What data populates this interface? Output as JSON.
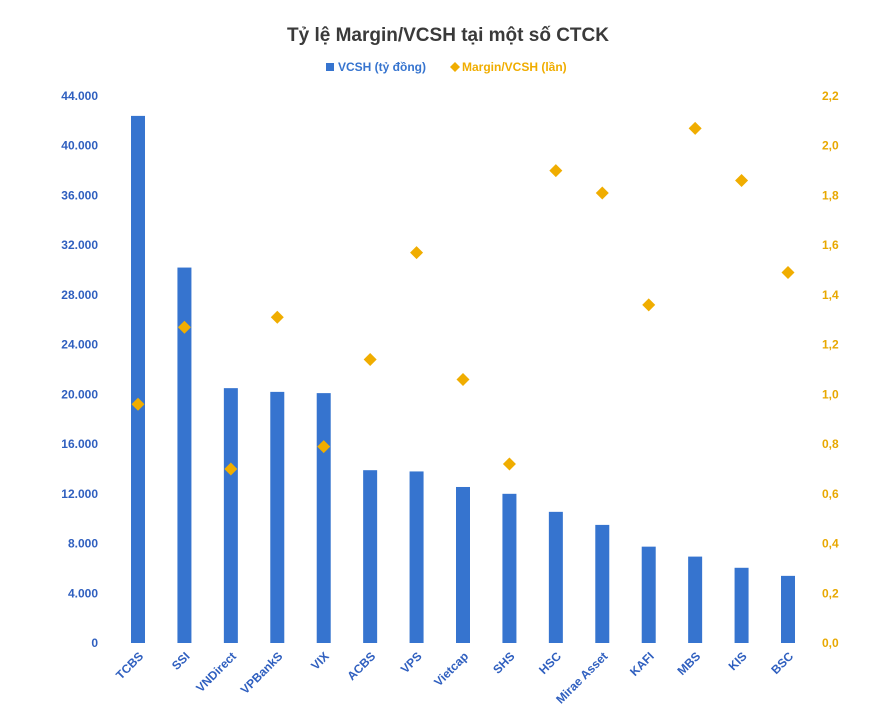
{
  "chart_data": {
    "type": "bar",
    "title": "Tỷ lệ Margin/VCSH tại một số CTCK",
    "categories": [
      "TCBS",
      "SSI",
      "VNDirect",
      "VPBankS",
      "VIX",
      "ACBS",
      "VPS",
      "Vietcap",
      "SHS",
      "HSC",
      "Mirae Asset",
      "KAFI",
      "MBS",
      "KIS",
      "BSC"
    ],
    "series": [
      {
        "name": "VCSH (tỷ đồng)",
        "type": "bar",
        "axis": "left",
        "color": "#3674cf",
        "values": [
          42400,
          30200,
          20500,
          20200,
          20100,
          13900,
          13800,
          12550,
          12000,
          10550,
          9500,
          7750,
          6950,
          6050,
          5400
        ]
      },
      {
        "name": "Margin/VCSH (lần)",
        "type": "scatter",
        "axis": "right",
        "color": "#f0ad00",
        "values": [
          0.96,
          1.27,
          0.7,
          1.31,
          0.79,
          1.14,
          1.57,
          1.06,
          0.72,
          1.9,
          1.81,
          1.36,
          2.07,
          1.86,
          1.49
        ]
      }
    ],
    "y_left": {
      "ylim": [
        0,
        44000
      ],
      "ticks": [
        0,
        4000,
        8000,
        12000,
        16000,
        20000,
        24000,
        28000,
        32000,
        36000,
        40000,
        44000
      ],
      "tick_labels": [
        "0",
        "4.000",
        "8.000",
        "12.000",
        "16.000",
        "20.000",
        "24.000",
        "28.000",
        "32.000",
        "36.000",
        "40.000",
        "44.000"
      ]
    },
    "y_right": {
      "ylim": [
        0,
        2.2
      ],
      "ticks": [
        0,
        0.2,
        0.4,
        0.6,
        0.8,
        1.0,
        1.2,
        1.4,
        1.6,
        1.8,
        2.0,
        2.2
      ],
      "tick_labels": [
        "0,0",
        "0,2",
        "0,4",
        "0,6",
        "0,8",
        "1,0",
        "1,2",
        "1,4",
        "1,6",
        "1,8",
        "2,0",
        "2,2"
      ]
    },
    "legend_position": "top-center",
    "grid": false
  }
}
